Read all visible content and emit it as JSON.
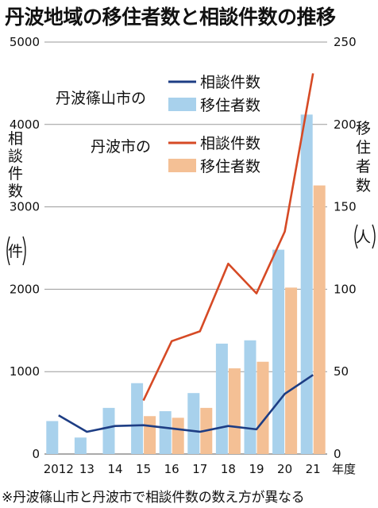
{
  "title": "丹波地域の移住者数と相談件数の推移",
  "footnote": "※丹波篠山市と丹波市で相談件数の数え方が異なる",
  "colors": {
    "sasayama_consult": "#1d3d84",
    "sasayama_migrant": "#a8d1ec",
    "tamba_consult": "#d64a25",
    "tamba_migrant": "#f4c095",
    "grid": "#9a9a9a"
  },
  "chart_data": {
    "type": "bar",
    "categories": [
      "2012",
      "13",
      "14",
      "15",
      "16",
      "17",
      "18",
      "19",
      "20",
      "21"
    ],
    "x_suffix": "年度",
    "left_axis": {
      "label": "相談件数",
      "unit": "件",
      "ticks": [
        "0",
        "1000",
        "2000",
        "3000",
        "4000",
        "5000"
      ],
      "ylim": [
        0,
        5000
      ]
    },
    "right_axis": {
      "label": "移住者数",
      "unit": "人",
      "ticks": [
        "0",
        "50",
        "100",
        "150",
        "200",
        "250"
      ],
      "ylim": [
        0,
        250
      ]
    },
    "legend": [
      {
        "group": "丹波篠山市の",
        "line": "相談件数",
        "bar": "移住者数"
      },
      {
        "group": "丹波市の",
        "line": "相談件数",
        "bar": "移住者数"
      }
    ],
    "series": [
      {
        "name": "丹波篠山市 移住者数",
        "kind": "bar",
        "axis": "right",
        "color_key": "sasayama_migrant",
        "values": [
          20,
          10,
          28,
          43,
          26,
          37,
          67,
          69,
          124,
          206
        ]
      },
      {
        "name": "丹波市 移住者数",
        "kind": "bar",
        "axis": "right",
        "color_key": "tamba_migrant",
        "values": [
          null,
          null,
          null,
          23,
          22,
          28,
          52,
          56,
          101,
          163
        ]
      },
      {
        "name": "丹波篠山市 相談件数",
        "kind": "line",
        "axis": "left",
        "color_key": "sasayama_consult",
        "values": [
          470,
          270,
          340,
          350,
          310,
          270,
          340,
          300,
          730,
          960
        ]
      },
      {
        "name": "丹波市 相談件数",
        "kind": "line",
        "axis": "left",
        "color_key": "tamba_consult",
        "values": [
          null,
          null,
          null,
          650,
          1370,
          1490,
          2310,
          1950,
          2700,
          4620
        ]
      }
    ]
  }
}
